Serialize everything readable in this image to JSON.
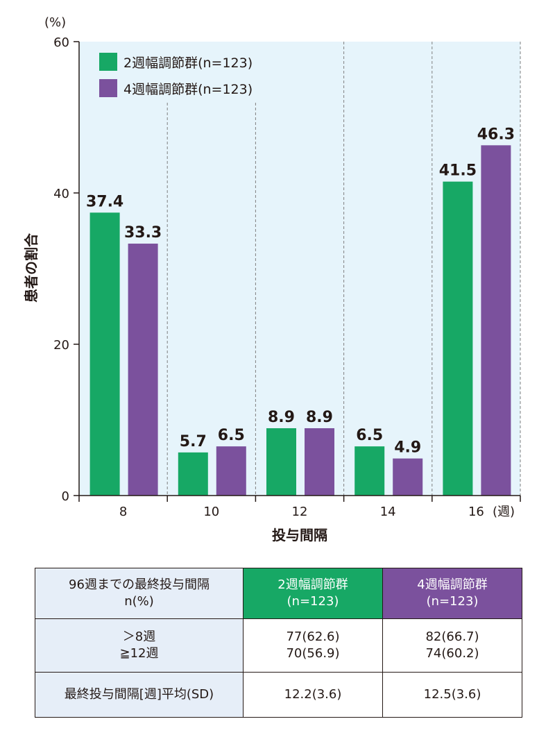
{
  "chart_data": {
    "type": "bar",
    "categories": [
      "8",
      "10",
      "12",
      "14",
      "16"
    ],
    "x_unit": "(週)",
    "series": [
      {
        "name": "2週幅調節群(n=123)",
        "color": "#17a865",
        "values": [
          37.4,
          5.7,
          8.9,
          6.5,
          41.5
        ],
        "labels": [
          "37.4",
          "5.7",
          "8.9",
          "6.5",
          "41.5"
        ]
      },
      {
        "name": "4週幅調節群(n=123)",
        "color": "#7b519d",
        "values": [
          33.3,
          6.5,
          8.9,
          4.9,
          46.3
        ],
        "labels": [
          "33.3",
          "6.5",
          "8.9",
          "4.9",
          "46.3"
        ]
      }
    ],
    "xlabel": "投与間隔",
    "ylabel": "患者の割合",
    "y_unit": "(%)",
    "ylim": [
      0,
      60
    ],
    "yticks": [
      "0",
      "20",
      "40",
      "60"
    ],
    "plot_background": "#e6f4fb",
    "grid": "dashed vertical separators between categories",
    "legend_position": "top-left"
  },
  "table": {
    "header": {
      "label_lines": [
        "96週までの最終投与間隔",
        "n(%)"
      ],
      "group2_lines": [
        "2週幅調節群",
        "(n=123)"
      ],
      "group4_lines": [
        "4週幅調節群",
        "(n=123)"
      ]
    },
    "rows": [
      {
        "label_lines": [
          "＞8週",
          "≧12週"
        ],
        "group2_lines": [
          "77(62.6)",
          "70(56.9)"
        ],
        "group4_lines": [
          "82(66.7)",
          "74(60.2)"
        ]
      },
      {
        "label_lines": [
          "最終投与間隔[週]平均(SD)"
        ],
        "group2_lines": [
          "12.2(3.6)"
        ],
        "group4_lines": [
          "12.5(3.6)"
        ]
      }
    ]
  }
}
